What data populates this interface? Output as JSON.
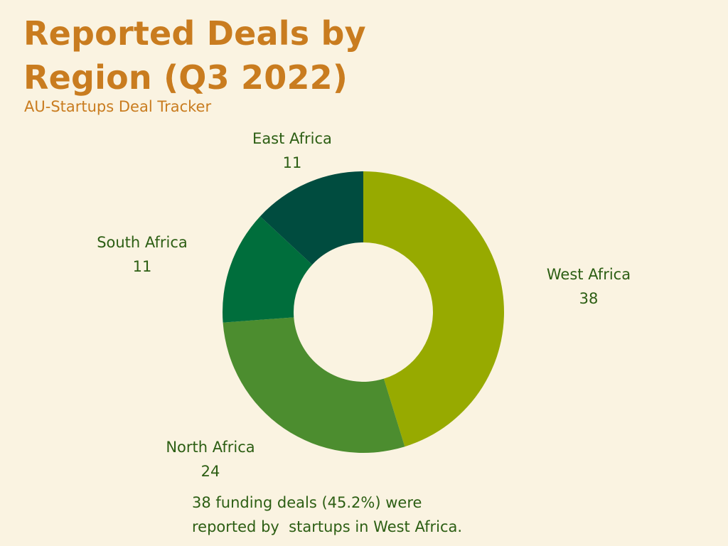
{
  "title": "Reported Deals by Region (Q3 2022)",
  "subtitle": "AU-Startups Deal Tracker",
  "footnote": "38 funding deals (45.2%) were\nreported by  startups in West Africa.",
  "colors": {
    "background": "#faf3e1",
    "title": "#c97c1f",
    "label_text": "#2c5e13"
  },
  "chart_data": {
    "type": "pie",
    "variant": "donut",
    "slices": [
      {
        "label": "West Africa",
        "value": 38,
        "display": "38",
        "color": "#97aa00"
      },
      {
        "label": "North Africa",
        "value": 24,
        "display": "24",
        "color": "#4c8d2f"
      },
      {
        "label": "South Africa",
        "value": 11,
        "display": "11",
        "color": "#006e3c"
      },
      {
        "label": "East Africa",
        "value": 11,
        "display": "11",
        "color": "#004c3f"
      }
    ]
  }
}
